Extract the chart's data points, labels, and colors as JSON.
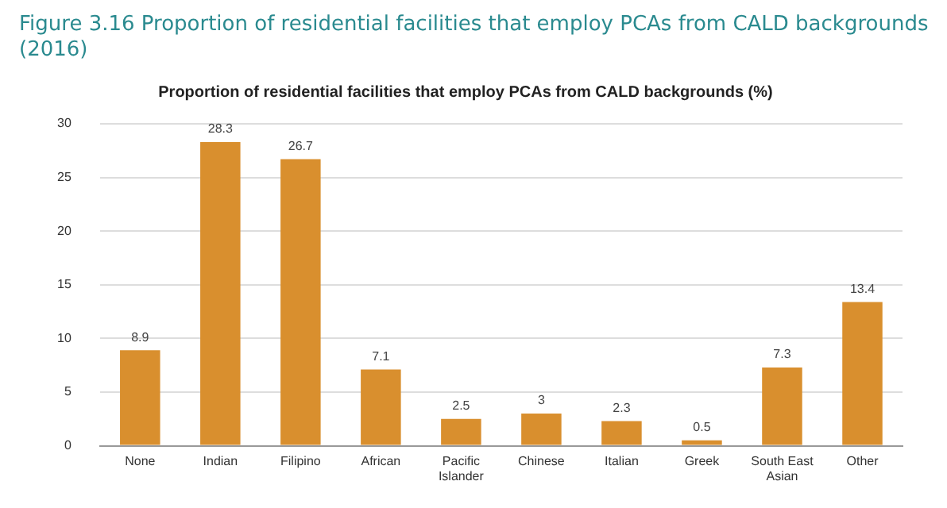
{
  "chart_data": {
    "type": "bar",
    "title": "Figure 3.16 Proportion of residential facilities that employ PCAs from CALD backgrounds (2016)",
    "subtitle": "Proportion of residential facilities that employ PCAs from CALD backgrounds (%)",
    "categories": [
      "None",
      "Indian",
      "Filipino",
      "African",
      "Pacific Islander",
      "Chinese",
      "Italian",
      "Greek",
      "South East Asian",
      "Other"
    ],
    "values": [
      8.9,
      28.3,
      26.7,
      7.1,
      2.5,
      3,
      2.3,
      0.5,
      7.3,
      13.4
    ],
    "color": "#d98f2e",
    "ylim": [
      0,
      30
    ],
    "yticks": [
      0,
      5,
      10,
      15,
      20,
      25,
      30
    ],
    "grid": "y",
    "data_labels": true
  }
}
